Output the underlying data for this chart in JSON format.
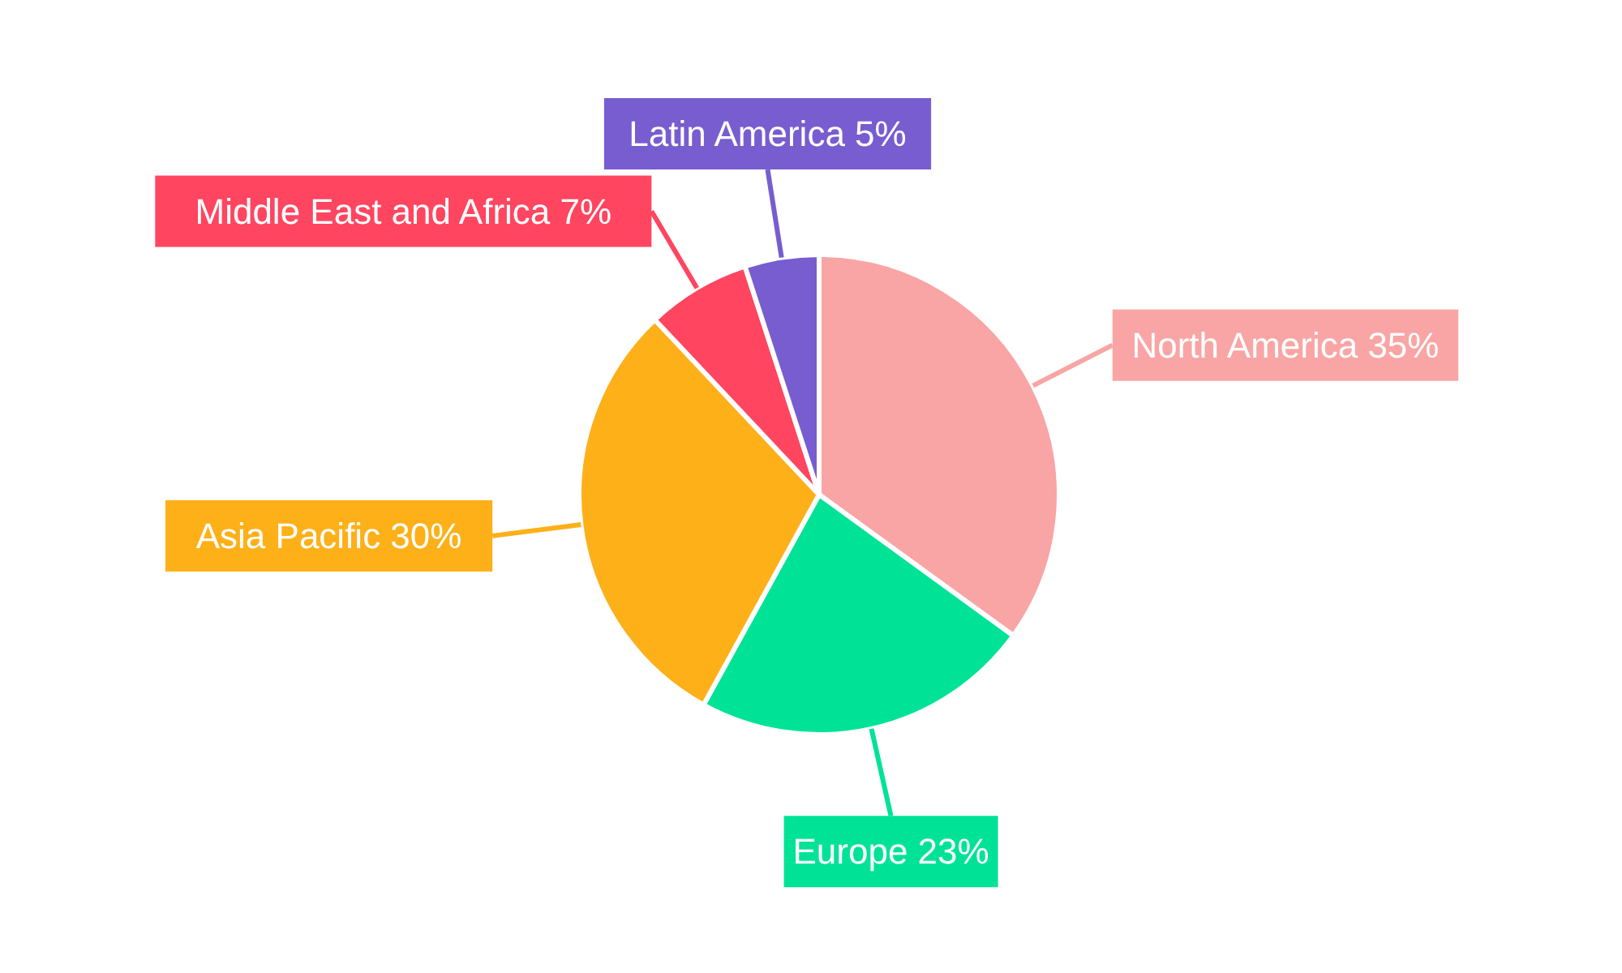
{
  "chart_data": {
    "type": "pie",
    "categories": [
      "North America",
      "Europe",
      "Asia Pacific",
      "Middle East and Africa",
      "Latin America"
    ],
    "values": [
      35,
      23,
      30,
      7,
      5
    ],
    "colors": [
      "#f9a5a5",
      "#00e396",
      "#feb019",
      "#ff4560",
      "#775dd0"
    ],
    "value_labels": [
      "35%",
      "23%",
      "30%",
      "7%",
      "5%"
    ]
  }
}
